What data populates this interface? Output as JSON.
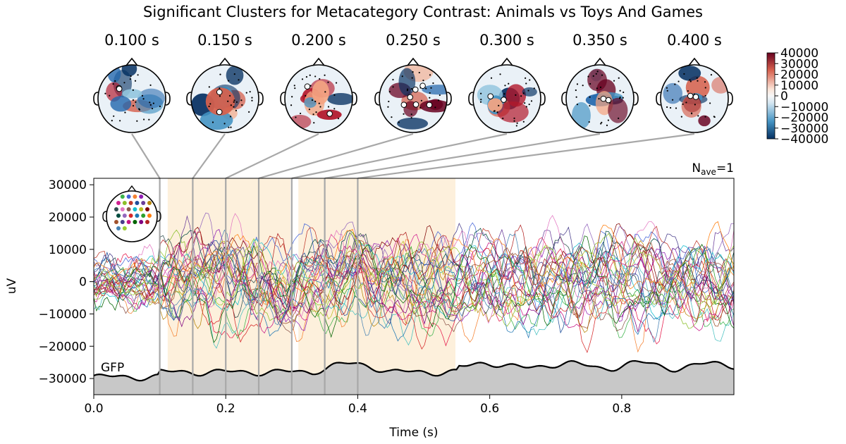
{
  "chart_data": {
    "type": "line",
    "title": "Significant Clusters for Metacategory Contrast: Animals vs Toys And Games",
    "xlabel": "Time (s)",
    "ylabel": "uV",
    "xlim": [
      0.0,
      0.97
    ],
    "ylim": [
      -35000,
      32000
    ],
    "xticks": [
      0.0,
      0.2,
      0.4,
      0.6,
      0.8
    ],
    "xtick_labels": [
      "0.0",
      "0.2",
      "0.4",
      "0.6",
      "0.8"
    ],
    "yticks": [
      -30000,
      -20000,
      -10000,
      0,
      10000,
      20000,
      30000
    ],
    "ytick_labels": [
      "−30000",
      "−20000",
      "−10000",
      "0",
      "10000",
      "20000",
      "30000"
    ],
    "nave_base": "N",
    "nave_sub": "ave",
    "nave_value": "=1",
    "gfp_label": "GFP",
    "n_channels": 32,
    "topomap_times": [
      0.1,
      0.15,
      0.2,
      0.25,
      0.3,
      0.35,
      0.4
    ],
    "topomap_labels": [
      "0.100 s",
      "0.150 s",
      "0.200 s",
      "0.250 s",
      "0.300 s",
      "0.350 s",
      "0.400 s"
    ],
    "cluster_spans": [
      [
        0.112,
        0.298
      ],
      [
        0.31,
        0.548
      ]
    ],
    "colorbar": {
      "ticks": [
        40000,
        30000,
        20000,
        10000,
        0,
        -10000,
        -20000,
        -30000,
        -40000
      ],
      "tick_labels": [
        "40000",
        "30000",
        "20000",
        "10000",
        "0",
        "−10000",
        "−20000",
        "−30000",
        "−40000"
      ],
      "range": [
        -40000,
        40000
      ]
    },
    "colors": {
      "span": "#fdf0dc",
      "gfp_fill": "#c8c8c8",
      "connector": "#a8a8a8",
      "cbar_pos": "#67001f",
      "cbar_neg": "#053061"
    }
  }
}
